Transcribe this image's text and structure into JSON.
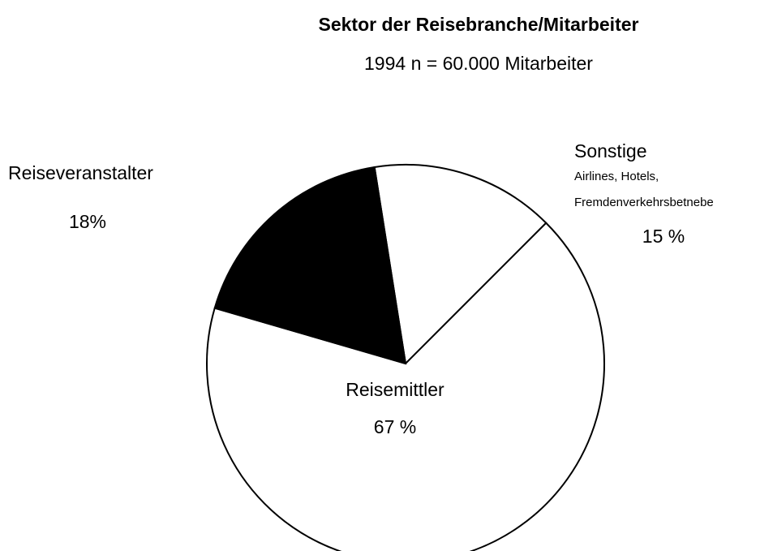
{
  "chart_data": {
    "type": "pie",
    "title": "Sektor der Reisebranche/Mitarbeiter",
    "subtitle": "1994 n = 60.000 Mitarbeiter",
    "categories": [
      "Sonstige",
      "Reisemittler",
      "Reiseveranstalter"
    ],
    "values": [
      15,
      67,
      18
    ],
    "value_labels": [
      "15 %",
      "67 %",
      "18%"
    ],
    "colors": [
      "#ffffff",
      "#ffffff",
      "#000000"
    ],
    "annotations": [
      "Airlines, Hotels,",
      "Fremdenverkehrsbetnebe"
    ]
  }
}
